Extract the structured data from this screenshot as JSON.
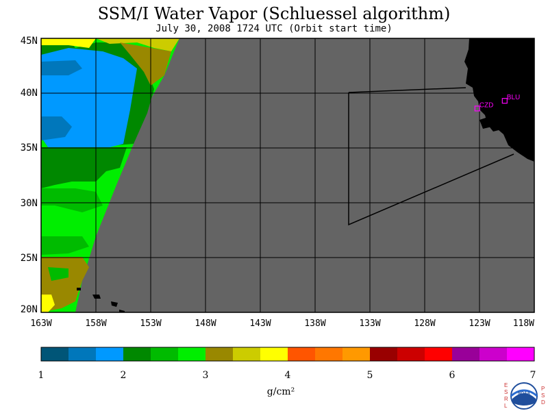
{
  "title": "SSM/I Water Vapor (Schluessel algorithm)",
  "subtitle": "July 30, 2008  1724 UTC  (Orbit start time)",
  "map": {
    "lat_labels": [
      "45N",
      "40N",
      "35N",
      "30N",
      "25N",
      "20N"
    ],
    "lon_labels": [
      "163W",
      "158W",
      "153W",
      "148W",
      "143W",
      "138W",
      "133W",
      "128W",
      "123W",
      "118W"
    ],
    "stations": [
      {
        "id": "CZD",
        "lat": 38.6,
        "lon": -123.2,
        "color": "#ff00ff"
      },
      {
        "id": "BLU",
        "lat": 39.3,
        "lon": -120.7,
        "color": "#ff00ff"
      }
    ]
  },
  "colorbar": {
    "units": "g/cm²",
    "tick_labels": [
      "1",
      "2",
      "3",
      "4",
      "5",
      "6",
      "7"
    ],
    "colors": [
      "#005577",
      "#0077bb",
      "#0099ff",
      "#008800",
      "#00bb00",
      "#00ee00",
      "#998800",
      "#cccc00",
      "#ffff00",
      "#ff5500",
      "#ff7700",
      "#ff9900",
      "#990000",
      "#cc0000",
      "#ff0000",
      "#990099",
      "#cc00cc",
      "#ff00ff"
    ]
  },
  "logo": {
    "left_letters": [
      "E",
      "S",
      "R",
      "L"
    ],
    "right_letters": [
      "P",
      "S",
      "D"
    ],
    "badge_text": "NOAA"
  }
}
